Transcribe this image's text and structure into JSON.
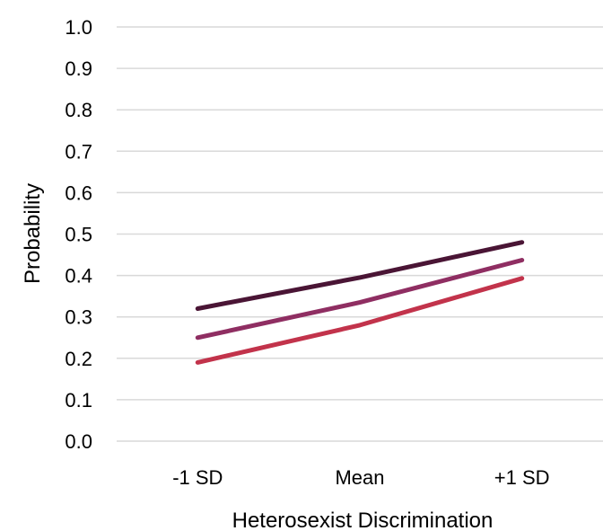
{
  "chart_data": {
    "type": "line",
    "categories": [
      "-1 SD",
      "Mean",
      "+1 SD"
    ],
    "series": [
      {
        "values": [
          0.32,
          0.395,
          0.48
        ],
        "color": "#4a1535"
      },
      {
        "values": [
          0.25,
          0.335,
          0.437
        ],
        "color": "#8f2e62"
      },
      {
        "values": [
          0.19,
          0.28,
          0.393
        ],
        "color": "#c2334b"
      }
    ],
    "xlabel": "Heterosexist Discrimination",
    "ylabel": "Probability",
    "ylim": [
      0.0,
      1.0
    ],
    "yticks": [
      "0.0",
      "0.1",
      "0.2",
      "0.3",
      "0.4",
      "0.5",
      "0.6",
      "0.7",
      "0.8",
      "0.9",
      "1.0"
    ],
    "grid": true,
    "legend": "none"
  }
}
